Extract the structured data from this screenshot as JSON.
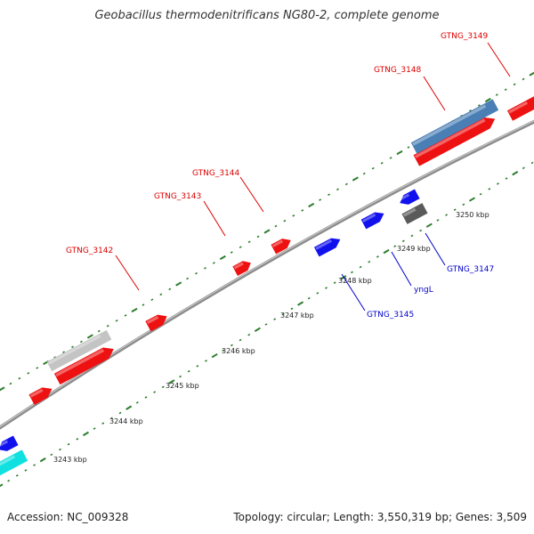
{
  "title": "Geobacillus thermodenitrificans NG80-2, complete genome",
  "footer": {
    "accession": "Accession: NC_009328",
    "topology": "Topology: circular; Length: 3,550,319 bp; Genes: 3,509"
  },
  "colors": {
    "backbone": "#8c8c8c",
    "tick": "#2e7d2e",
    "label_red": "#dd0000",
    "label_blue": "#0000cc",
    "gene_red": "#ee1111",
    "gene_blue": "#1111ee",
    "gene_steelblue": "#4a7fb5",
    "gene_cyan": "#11e0e0",
    "gene_lightgray": "#c4c4c4",
    "gene_darkgray": "#5a5a5a"
  },
  "kbp_labels": [
    "3243 kbp",
    "3244 kbp",
    "3245 kbp",
    "3246 kbp",
    "3247 kbp",
    "3248 kbp",
    "3249 kbp",
    "3250 kbp"
  ],
  "gene_labels": [
    {
      "text": "GTNG_3149",
      "color": "red"
    },
    {
      "text": "GTNG_3148",
      "color": "red"
    },
    {
      "text": "GTNG_3144",
      "color": "red"
    },
    {
      "text": "GTNG_3143",
      "color": "red"
    },
    {
      "text": "GTNG_3142",
      "color": "red"
    },
    {
      "text": "GTNG_3147",
      "color": "blue"
    },
    {
      "text": "yngL",
      "color": "blue"
    },
    {
      "text": "GTNG_3145",
      "color": "blue"
    }
  ]
}
